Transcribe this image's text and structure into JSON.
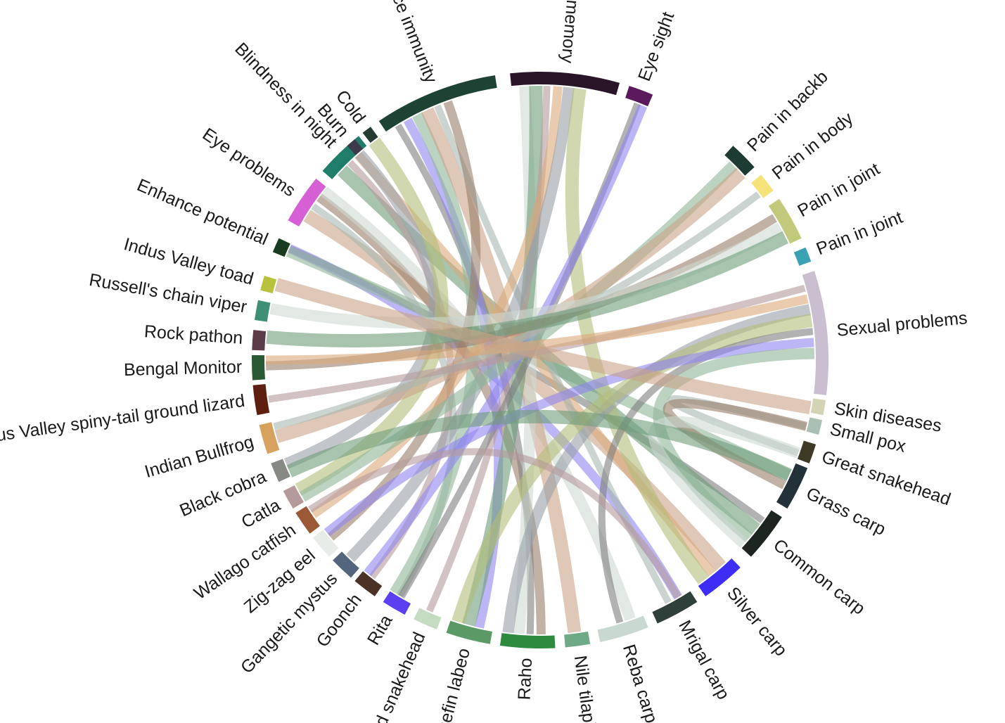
{
  "chart_data": {
    "type": "chord",
    "sectors": [
      {
        "name": "Pain in backb",
        "color": "#1e3b33"
      },
      {
        "name": "Pain in body",
        "color": "#f5e27a"
      },
      {
        "name": "Pain in joint",
        "color": "#c2c97a"
      },
      {
        "name": "Pain in joint",
        "color": "#3aa0b4"
      },
      {
        "name": "Sexual problems",
        "color": "#c9bfd0"
      },
      {
        "name": "Skin diseases",
        "color": "#d3d3b5"
      },
      {
        "name": "Small pox",
        "color": "#a9c0b2"
      },
      {
        "name": "Great snakehead",
        "color": "#3f3a26"
      },
      {
        "name": "Grass carp",
        "color": "#233238"
      },
      {
        "name": "Common carp",
        "color": "#1c2520"
      },
      {
        "name": "Silver carp",
        "color": "#3d2df5"
      },
      {
        "name": "Mrigal carp",
        "color": "#2f3f39"
      },
      {
        "name": "Reba carp",
        "color": "#c9d8d0"
      },
      {
        "name": "Nile tilapia",
        "color": "#6daa85"
      },
      {
        "name": "Raho",
        "color": "#2e8a3f"
      },
      {
        "name": "ngefin labeo",
        "color": "#5b9966"
      },
      {
        "name": "d snakehead",
        "color": "#c5dcc2"
      },
      {
        "name": "Rita",
        "color": "#5b3ff0"
      },
      {
        "name": "Goonch",
        "color": "#4a3226"
      },
      {
        "name": "Gangetic mystus",
        "color": "#52657c"
      },
      {
        "name": "Zig-zag eel",
        "color": "#e7ece9"
      },
      {
        "name": "Wallago catfish",
        "color": "#9b5a35"
      },
      {
        "name": "Catla",
        "color": "#b59a9c"
      },
      {
        "name": "Black cobra",
        "color": "#878a84"
      },
      {
        "name": "Indian Bullfrog",
        "color": "#d7a15e"
      },
      {
        "name": "Indus Valley spiny-tail ground lizard",
        "color": "#5e1f10"
      },
      {
        "name": "Bengal Monitor",
        "color": "#295a33"
      },
      {
        "name": "Rock pathon",
        "color": "#5d3c4a"
      },
      {
        "name": "Russell's chain viper",
        "color": "#3f8f77"
      },
      {
        "name": "Indus Valley toad",
        "color": "#b8c23c"
      },
      {
        "name": "Enhance potential",
        "color": "#193b1f"
      },
      {
        "name": "Eye problems",
        "color": "#d65fd6"
      },
      {
        "name": "Blindness in night",
        "color": "#1f7d6a"
      },
      {
        "name": "Burn",
        "color": "#3d3a4a"
      },
      {
        "name": "Cold",
        "color": "#263c32"
      },
      {
        "name": "Enhance immunity",
        "color": "#1e4233"
      },
      {
        "name": "Enhance memory",
        "color": "#2a1428"
      },
      {
        "name": "Eye sight",
        "color": "#5a1a5c"
      }
    ],
    "label_text": {
      "Enhance immunity": "Enhance immunity",
      "Enhance memory": "Enhance memory",
      "Eye sight": "Eye sight"
    },
    "link_palette": [
      "#7f7f7f",
      "#8f86f0",
      "#8fb59a",
      "#c9a487",
      "#a9b8b0",
      "#9a7e6b",
      "#cfd8d2",
      "#6e9c7a",
      "#b59a9c",
      "#dba87a",
      "#9aa0a8",
      "#b3bd7a"
    ],
    "links": [
      [
        "Enhance potential",
        "Common carp"
      ],
      [
        "Enhance potential",
        "Mrigal carp"
      ],
      [
        "Enhance potential",
        "Grass carp"
      ],
      [
        "Eye problems",
        "Silver carp"
      ],
      [
        "Eye problems",
        "Rita"
      ],
      [
        "Eye problems",
        "Raho"
      ],
      [
        "Eye problems",
        "Reba carp"
      ],
      [
        "Blindness in night",
        "Common carp"
      ],
      [
        "Blindness in night",
        "Goonch"
      ],
      [
        "Blindness in night",
        "Silver carp"
      ],
      [
        "Burn",
        "Black cobra"
      ],
      [
        "Cold",
        "Catla"
      ],
      [
        "Enhance immunity",
        "Raho"
      ],
      [
        "Enhance immunity",
        "ngefin labeo"
      ],
      [
        "Enhance immunity",
        "Rita"
      ],
      [
        "Enhance immunity",
        "Nile tilapia"
      ],
      [
        "Enhance immunity",
        "Mrigal carp"
      ],
      [
        "Enhance immunity",
        "Zig-zag eel"
      ],
      [
        "Enhance memory",
        "Raho"
      ],
      [
        "Enhance memory",
        "ngefin labeo"
      ],
      [
        "Enhance memory",
        "d snakehead"
      ],
      [
        "Enhance memory",
        "Wallago catfish"
      ],
      [
        "Enhance memory",
        "Gangetic mystus"
      ],
      [
        "Enhance memory",
        "Silver carp"
      ],
      [
        "Eye sight",
        "Rita"
      ],
      [
        "Eye sight",
        "Goonch"
      ],
      [
        "Pain in backb",
        "Catla"
      ],
      [
        "Pain in backb",
        "Indian Bullfrog"
      ],
      [
        "Pain in body",
        "Indian Bullfrog"
      ],
      [
        "Pain in joint",
        "Bengal Monitor"
      ],
      [
        "Pain in joint",
        "Russell's chain viper"
      ],
      [
        "Pain in joint",
        "Rock pathon"
      ],
      [
        "Sexual problems",
        "Indus Valley spiny-tail ground lizard"
      ],
      [
        "Sexual problems",
        "Bengal Monitor"
      ],
      [
        "Sexual problems",
        "Raho"
      ],
      [
        "Sexual problems",
        "ngefin labeo"
      ],
      [
        "Sexual problems",
        "Reba carp"
      ],
      [
        "Sexual problems",
        "Zig-zag eel"
      ],
      [
        "Sexual problems",
        "Common carp"
      ],
      [
        "Skin diseases",
        "Indus Valley toad"
      ],
      [
        "Small pox",
        "Great snakehead"
      ],
      [
        "Small pox",
        "Grass carp"
      ],
      [
        "Great snakehead",
        "Common carp"
      ],
      [
        "Grass carp",
        "Black cobra"
      ],
      [
        "Mrigal carp",
        "Wallago catfish"
      ]
    ]
  }
}
